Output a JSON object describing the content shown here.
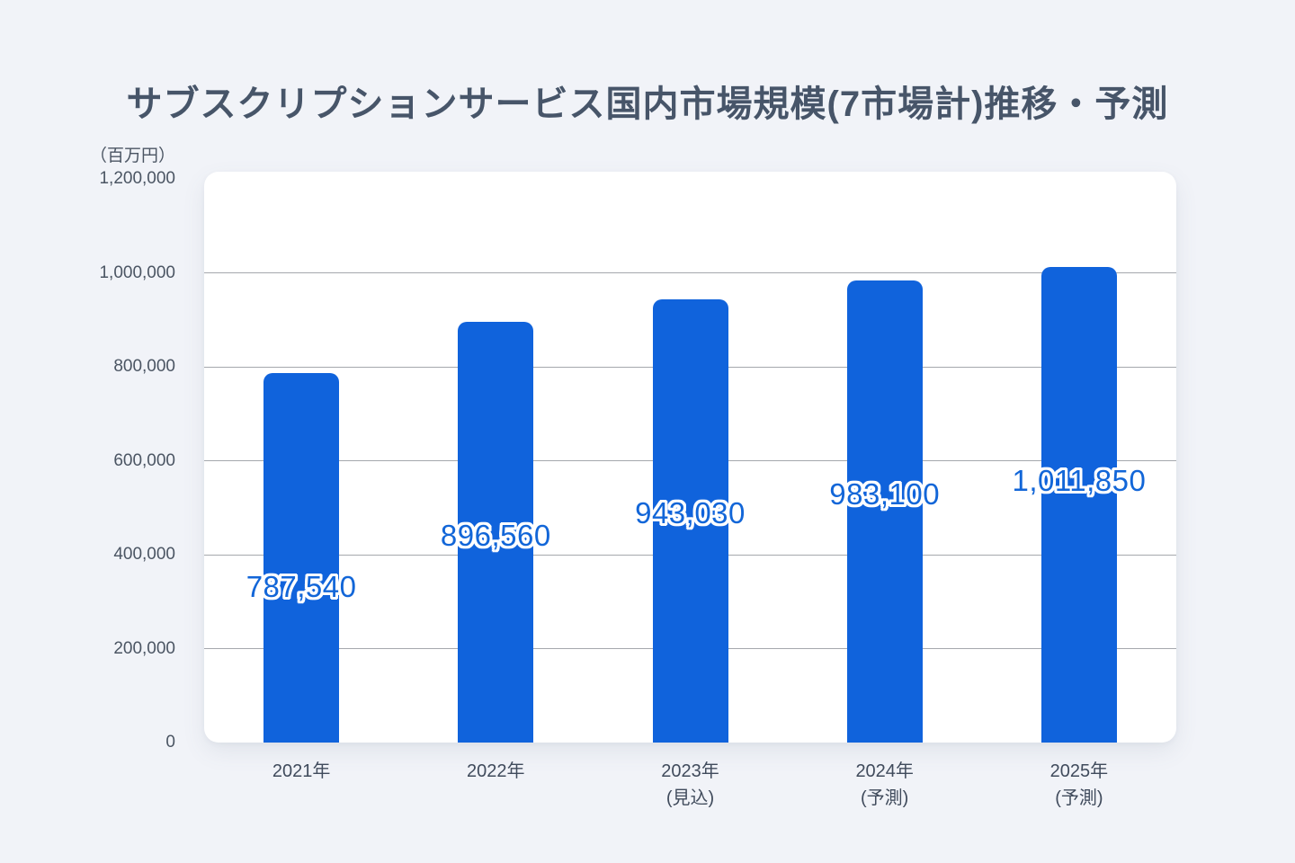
{
  "page": {
    "background_color": "#f1f3f8"
  },
  "chart_data": {
    "type": "bar",
    "title": "サブスクリプションサービス国内市場規模(7市場計)推移・予測",
    "unit_label": "（百万円）",
    "categories": [
      {
        "line1": "2021年",
        "line2": ""
      },
      {
        "line1": "2022年",
        "line2": ""
      },
      {
        "line1": "2023年",
        "line2": "(見込)"
      },
      {
        "line1": "2024年",
        "line2": "(予測)"
      },
      {
        "line1": "2025年",
        "line2": "(予測)"
      }
    ],
    "values": [
      787540,
      896560,
      943030,
      983100,
      1011850
    ],
    "value_labels": [
      "787,540",
      "896,560",
      "943,030",
      "983,100",
      "1,011,850"
    ],
    "ylim": [
      0,
      1200000
    ],
    "yticks": [
      {
        "value": 1200000,
        "label": "1,200,000"
      },
      {
        "value": 1000000,
        "label": "1,000,000"
      },
      {
        "value": 800000,
        "label": "800,000"
      },
      {
        "value": 600000,
        "label": "600,000"
      },
      {
        "value": 400000,
        "label": "400,000"
      },
      {
        "value": 200000,
        "label": "200,000"
      },
      {
        "value": 0,
        "label": "0"
      }
    ],
    "grid": true,
    "legend": "none",
    "colors": {
      "bar": "#1063dc",
      "value_label": "#1266d8",
      "gridline": "#a5a8ad",
      "title": "#475569",
      "axis_text": "#4b5563"
    }
  }
}
